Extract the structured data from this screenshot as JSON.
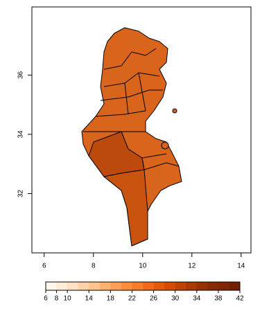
{
  "map": {
    "xlim": [
      5.5,
      14.4
    ],
    "ylim": [
      30,
      38.3
    ],
    "xticks": [
      6,
      8,
      10,
      12,
      14
    ],
    "yticks": [
      32,
      34,
      36
    ],
    "legend": {
      "ticks": [
        6,
        8,
        10,
        14,
        18,
        22,
        26,
        30,
        34,
        38,
        42
      ],
      "colors": [
        "#fff5eb",
        "#feebd8",
        "#fee2c6",
        "#fdd3a9",
        "#fdc48d",
        "#fdb271",
        "#fd9f56",
        "#fd8d3c",
        "#f77b29",
        "#f06a18",
        "#e35a0b",
        "#d54b02",
        "#c14102",
        "#ac3803",
        "#983003",
        "#882a04",
        "#7f2704",
        "#702203"
      ]
    }
  }
}
